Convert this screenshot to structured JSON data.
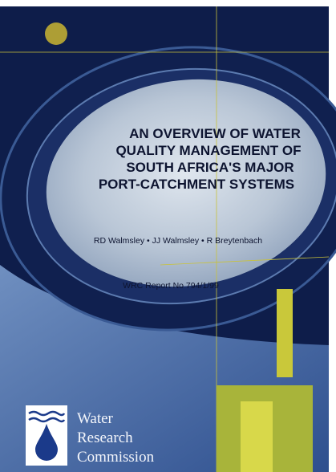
{
  "cover": {
    "title_lines": [
      "AN OVERVIEW OF WATER",
      "QUALITY MANAGEMENT OF",
      "SOUTH AFRICA'S MAJOR",
      "PORT-CATCHMENT SYSTEMS"
    ],
    "authors": "RD Walmsley • JJ Walmsley • R Breytenbach",
    "report_number": "WRC Report No 794/1/99",
    "publisher": {
      "lines": [
        "Water",
        "Research",
        "Commission"
      ]
    }
  }
}
